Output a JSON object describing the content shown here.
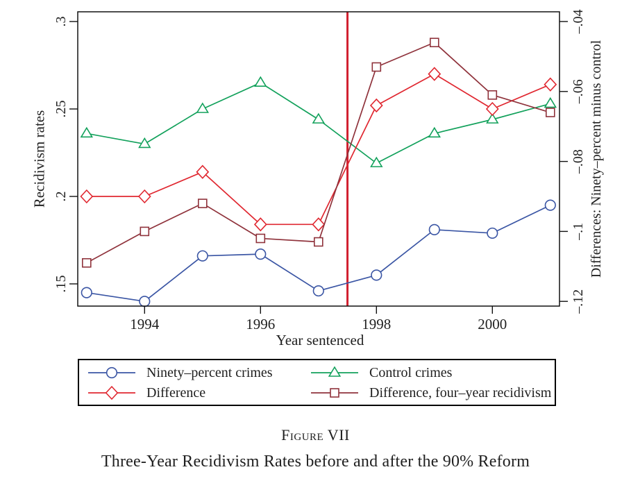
{
  "chart_data": {
    "type": "line",
    "x": [
      1993,
      1994,
      1995,
      1996,
      1997,
      1998,
      1999,
      2000,
      2001
    ],
    "x_axis": {
      "label": "Year sentenced",
      "ticks": [
        {
          "v": 1994,
          "label": "1994"
        },
        {
          "v": 1996,
          "label": "1996"
        },
        {
          "v": 1998,
          "label": "1998"
        },
        {
          "v": 2000,
          "label": "2000"
        }
      ],
      "range": [
        1992.85,
        2001.17
      ],
      "grid": false
    },
    "left_axis": {
      "label": "Recidivism rates",
      "ticks": [
        {
          "v": 0.15,
          "label": ".15"
        },
        {
          "v": 0.2,
          "label": ".2"
        },
        {
          "v": 0.25,
          "label": ".25"
        },
        {
          "v": 0.3,
          "label": ".3"
        }
      ],
      "range": [
        0.1373,
        0.3056
      ]
    },
    "right_axis": {
      "label": "Differences: Ninety–percent minus control",
      "ticks": [
        {
          "v": -0.04,
          "label": "–.04"
        },
        {
          "v": -0.06,
          "label": "–.06"
        },
        {
          "v": -0.08,
          "label": "–.08"
        },
        {
          "v": -0.1,
          "label": "–.1"
        },
        {
          "v": -0.12,
          "label": "–.12"
        }
      ],
      "align_to_left": {
        "scale": 2,
        "offset": 0.38
      },
      "range": [
        -0.1214,
        -0.0372
      ]
    },
    "reform_line": {
      "x": 1997.5,
      "color": "#d11f2f"
    },
    "series": [
      {
        "name": "Ninety–percent crimes",
        "axis": "left",
        "marker": "circle",
        "color": "#3a55a4",
        "values": [
          0.145,
          0.14,
          0.166,
          0.167,
          0.146,
          0.155,
          0.181,
          0.179,
          0.195
        ]
      },
      {
        "name": "Control crimes",
        "axis": "left",
        "marker": "triangle",
        "color": "#12a15b",
        "values": [
          0.236,
          0.23,
          0.25,
          0.265,
          0.244,
          0.219,
          0.236,
          0.244,
          0.253
        ]
      },
      {
        "name": "Difference",
        "axis": "right",
        "marker": "diamond",
        "color": "#e02730",
        "values": [
          -0.09,
          -0.09,
          -0.083,
          -0.098,
          -0.098,
          -0.064,
          -0.055,
          -0.065,
          -0.058
        ]
      },
      {
        "name": "Difference, four–year recidivism",
        "axis": "right",
        "marker": "square",
        "color": "#8f323b",
        "values": [
          -0.109,
          -0.1,
          -0.092,
          -0.102,
          -0.103,
          -0.053,
          -0.046,
          -0.061,
          -0.066
        ]
      }
    ],
    "legend_position": "below",
    "title": "Three-Year Recidivism Rates before and after the 90% Reform"
  },
  "legend": {
    "rows": 2,
    "columns": 2
  },
  "caption": {
    "figure_label": "Figure VII",
    "title": "Three-Year Recidivism Rates before and after the 90% Reform"
  }
}
